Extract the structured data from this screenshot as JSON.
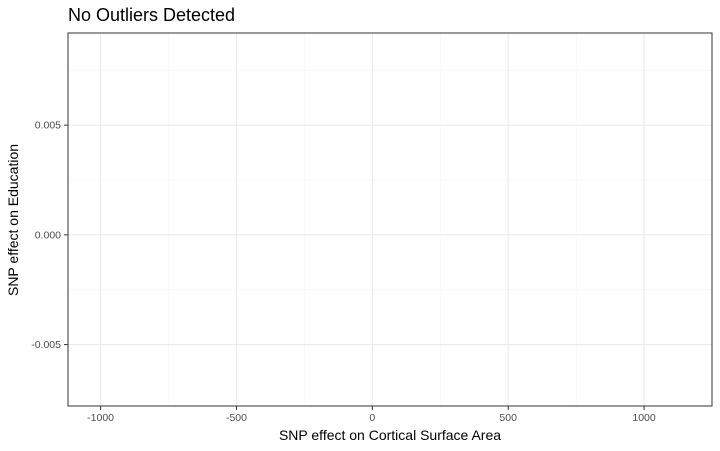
{
  "chart_data": {
    "type": "scatter",
    "title": "No Outliers Detected",
    "xlabel": "SNP effect on Cortical Surface Area",
    "ylabel": "SNP effect on Education",
    "xlim": [
      -1120,
      1250
    ],
    "ylim": [
      -0.0078,
      0.0092
    ],
    "x_ticks": [
      -1000,
      -500,
      0,
      500,
      1000
    ],
    "x_tick_labels": [
      "-1000",
      "-500",
      "0",
      "500",
      "1000"
    ],
    "y_ticks": [
      -0.005,
      0.0,
      0.005
    ],
    "y_tick_labels": [
      "-0.005",
      "0.000",
      "0.005"
    ],
    "x_minor_ticks": [
      -750,
      -250,
      250,
      750
    ],
    "y_minor_ticks": [
      -0.0025,
      0.0025,
      0.0075
    ],
    "grid": true,
    "series": [
      {
        "values": []
      }
    ],
    "colors": {
      "panel_border": "#333333",
      "major_grid": "#ebebeb",
      "minor_grid": "#f5f5f5",
      "tick_text": "#4d4d4d",
      "tick_mark": "#333333",
      "background": "#ffffff"
    }
  }
}
